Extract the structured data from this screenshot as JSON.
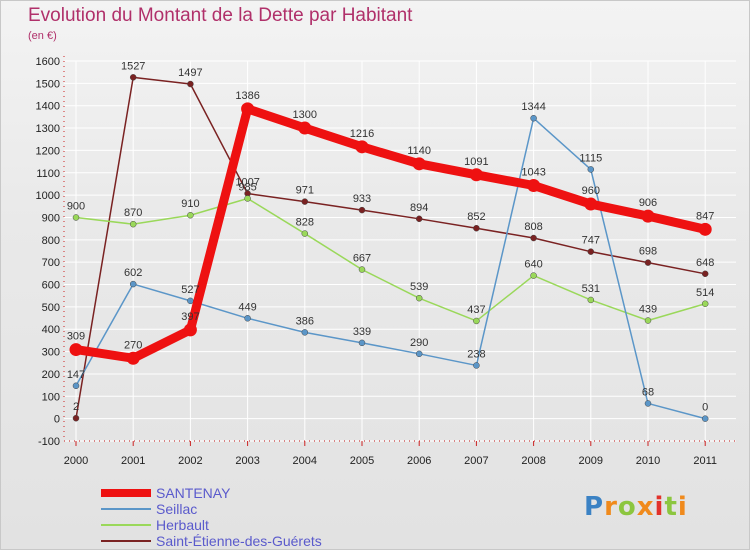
{
  "title": "Evolution du Montant de la Dette par Habitant",
  "subtitle": "(en €)",
  "logo_text": "Proxiti",
  "colors": {
    "background": "#ebebeb",
    "grid": "#ffffff",
    "title": "#b0306a",
    "legend_text": "#5a5acc"
  },
  "chart_data": {
    "type": "line",
    "title": "Evolution du Montant de la Dette par Habitant",
    "subtitle": "(en €)",
    "xlabel": "",
    "ylabel": "",
    "categories": [
      "2000",
      "2001",
      "2002",
      "2003",
      "2004",
      "2005",
      "2006",
      "2007",
      "2008",
      "2009",
      "2010",
      "2011"
    ],
    "ylim": [
      -100,
      1600
    ],
    "yticks": [
      -100,
      0,
      100,
      200,
      300,
      400,
      500,
      600,
      700,
      800,
      900,
      1000,
      1100,
      1200,
      1300,
      1400,
      1500,
      1600
    ],
    "grid": true,
    "legend_position": "bottom-left",
    "series": [
      {
        "name": "Saint-Étienne-des-Guérets",
        "color": "#7a2222",
        "values": [
          2,
          1527,
          1497,
          1007,
          971,
          933,
          894,
          852,
          808,
          747,
          698,
          648
        ]
      },
      {
        "name": "Herbault",
        "color": "#9ad85a",
        "values": [
          900,
          870,
          910,
          985,
          828,
          667,
          539,
          437,
          640,
          531,
          439,
          514
        ]
      },
      {
        "name": "Seillac",
        "color": "#5b96c8",
        "values": [
          147,
          602,
          527,
          449,
          386,
          339,
          290,
          238,
          1344,
          1115,
          68,
          0
        ]
      },
      {
        "name": "SANTENAY",
        "color": "#ee1111",
        "values": [
          309,
          270,
          397,
          1386,
          1300,
          1216,
          1140,
          1091,
          1043,
          960,
          906,
          847
        ]
      }
    ],
    "legend_order": [
      "SANTENAY",
      "Seillac",
      "Herbault",
      "Saint-Étienne-des-Guérets"
    ]
  }
}
